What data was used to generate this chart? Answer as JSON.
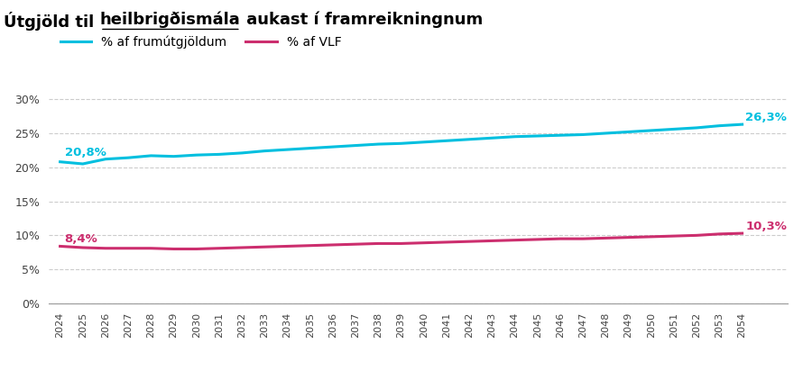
{
  "title_plain": "Útgjöld til ",
  "title_underline": "heilbrigðismála",
  "title_rest": " aukast í framreikningnum",
  "years": [
    2024,
    2025,
    2026,
    2027,
    2028,
    2029,
    2030,
    2031,
    2032,
    2033,
    2034,
    2035,
    2036,
    2037,
    2038,
    2039,
    2040,
    2041,
    2042,
    2043,
    2044,
    2045,
    2046,
    2047,
    2048,
    2049,
    2050,
    2051,
    2052,
    2053,
    2054
  ],
  "series1_label": "% af frumútgjöldum",
  "series2_label": "% af VLF",
  "series1_color": "#00BFDF",
  "series2_color": "#CC2E6E",
  "series1_values": [
    20.8,
    20.5,
    21.2,
    21.4,
    21.7,
    21.6,
    21.8,
    21.9,
    22.1,
    22.4,
    22.6,
    22.8,
    23.0,
    23.2,
    23.4,
    23.5,
    23.7,
    23.9,
    24.1,
    24.3,
    24.5,
    24.6,
    24.7,
    24.8,
    25.0,
    25.2,
    25.4,
    25.6,
    25.8,
    26.1,
    26.3
  ],
  "series2_values": [
    8.4,
    8.2,
    8.1,
    8.1,
    8.1,
    8.0,
    8.0,
    8.1,
    8.2,
    8.3,
    8.4,
    8.5,
    8.6,
    8.7,
    8.8,
    8.8,
    8.9,
    9.0,
    9.1,
    9.2,
    9.3,
    9.4,
    9.5,
    9.5,
    9.6,
    9.7,
    9.8,
    9.9,
    10.0,
    10.2,
    10.3
  ],
  "series1_start_label": "20,8%",
  "series1_end_label": "26,3%",
  "series2_start_label": "8,4%",
  "series2_end_label": "10,3%",
  "ylim": [
    0,
    32
  ],
  "yticks": [
    0,
    5,
    10,
    15,
    20,
    25,
    30
  ],
  "ytick_labels": [
    "0%",
    "5%",
    "10%",
    "15%",
    "20%",
    "25%",
    "30%"
  ],
  "background_color": "#FFFFFF",
  "grid_color": "#CCCCCC",
  "line_width": 2.2
}
